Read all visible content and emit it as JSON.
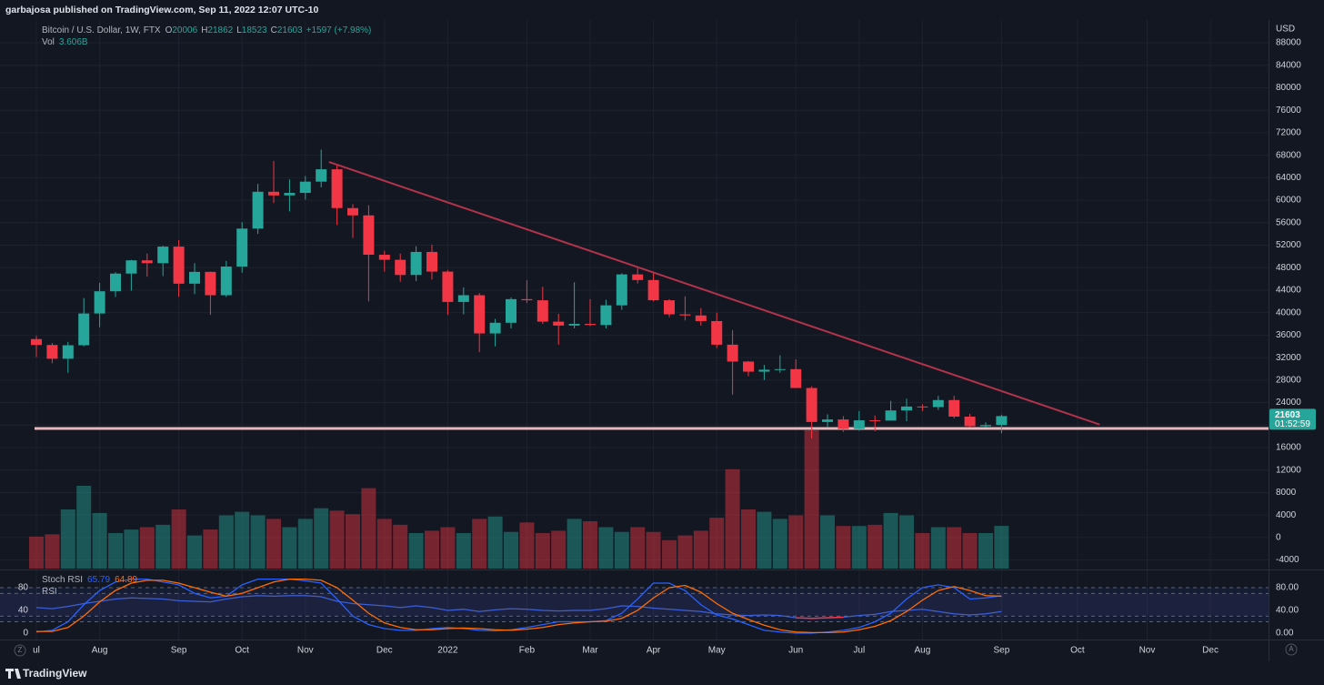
{
  "chart_data": {
    "type": "candlestick",
    "header": "garbajosa published on TradingView.com, Sep 11, 2022 12:07 UTC-10",
    "title": "Bitcoin / U.S. Dollar, 1W, FTX",
    "ohlc_labels": [
      "O",
      "H",
      "L",
      "C"
    ],
    "change_label": "+1597 (+7.98%)",
    "currency": "USD",
    "countdown": "01:52:59",
    "up_color": "#26a69a",
    "down_color": "#f23645",
    "open": [
      35300,
      34250,
      31800,
      34200,
      39850,
      43800,
      46950,
      49300,
      48800,
      51750,
      45150,
      47250,
      43100,
      48200,
      54950,
      61500,
      60850,
      61300,
      63300,
      65500,
      58600,
      57300,
      50300,
      49400,
      46700,
      50800,
      47300,
      41900,
      43100,
      36300,
      38200,
      42400,
      42200,
      38400,
      37700,
      38000,
      37800,
      41300,
      46800,
      45800,
      42200,
      39700,
      39500,
      38500,
      34300,
      31300,
      29500,
      29850,
      29950,
      26600,
      20550,
      21000,
      19300,
      20850,
      20800,
      22600,
      23300,
      23200,
      24450,
      21500,
      19800,
      20006
    ],
    "high": [
      35900,
      34600,
      34800,
      42600,
      45300,
      47200,
      49400,
      50500,
      51900,
      52900,
      48800,
      47300,
      49200,
      56100,
      62900,
      67000,
      63700,
      64300,
      69000,
      66300,
      59300,
      59100,
      51000,
      50500,
      51800,
      52100,
      47600,
      44500,
      43500,
      38900,
      42700,
      45800,
      44600,
      39800,
      45400,
      42400,
      42300,
      47000,
      48200,
      47200,
      42400,
      42900,
      40800,
      40000,
      36900,
      31400,
      30700,
      32400,
      31700,
      26900,
      21900,
      21600,
      22500,
      21700,
      24300,
      24700,
      23700,
      25200,
      25200,
      22000,
      20500,
      21862
    ],
    "low": [
      32100,
      31000,
      29300,
      34000,
      37400,
      42800,
      43900,
      46400,
      46500,
      42800,
      43300,
      39600,
      42800,
      47100,
      54000,
      59500,
      58000,
      60100,
      62300,
      55600,
      53300,
      42000,
      47300,
      45500,
      45600,
      45900,
      39600,
      39700,
      33000,
      34000,
      37200,
      41700,
      38000,
      34300,
      37200,
      37600,
      37200,
      40500,
      45200,
      42000,
      39200,
      38600,
      37700,
      33700,
      25400,
      28700,
      28000,
      29300,
      26600,
      17600,
      19700,
      18800,
      19000,
      18900,
      20800,
      20700,
      22500,
      22700,
      21200,
      19600,
      19600,
      18523
    ],
    "close": [
      34250,
      31800,
      34200,
      39850,
      43800,
      46950,
      49300,
      48800,
      51750,
      45150,
      47250,
      43100,
      48200,
      54950,
      61500,
      60850,
      61300,
      63300,
      65500,
      58600,
      57300,
      50300,
      49400,
      46700,
      50800,
      47300,
      41900,
      43100,
      36300,
      38200,
      42400,
      42200,
      38400,
      37700,
      38000,
      37800,
      41300,
      46800,
      45800,
      42200,
      39700,
      39500,
      38500,
      34300,
      31300,
      29500,
      29850,
      29950,
      26600,
      20550,
      21000,
      19300,
      20850,
      20800,
      22600,
      23300,
      23200,
      24450,
      21500,
      19800,
      20006,
      21603
    ],
    "ylim": [
      -5520,
      92050
    ],
    "yticks": [
      88000,
      84000,
      80000,
      76000,
      72000,
      68000,
      64000,
      60000,
      56000,
      52000,
      48000,
      44000,
      40000,
      36000,
      32000,
      28000,
      24000,
      20000,
      16000,
      12000,
      8000,
      4000,
      0,
      -4000
    ],
    "xticks": [
      {
        "value": 0,
        "label": "ul"
      },
      {
        "value": 4,
        "label": "Aug"
      },
      {
        "value": 9,
        "label": "Sep"
      },
      {
        "value": 13,
        "label": "Oct"
      },
      {
        "value": 17,
        "label": "Nov"
      },
      {
        "value": 22,
        "label": "Dec"
      },
      {
        "value": 26,
        "label": "2022"
      },
      {
        "value": 31,
        "label": "Feb"
      },
      {
        "value": 35,
        "label": "Mar"
      },
      {
        "value": 39,
        "label": "Apr"
      },
      {
        "value": 43,
        "label": "May"
      },
      {
        "value": 48,
        "label": "Jun"
      },
      {
        "value": 52,
        "label": "Jul"
      },
      {
        "value": 56,
        "label": "Aug"
      },
      {
        "value": 61,
        "label": "Sep"
      },
      {
        "value": 65.8,
        "label": "Oct"
      },
      {
        "value": 70.2,
        "label": "Nov"
      },
      {
        "value": 74.2,
        "label": "Dec"
      }
    ],
    "grid": true,
    "volume": {
      "label": "Vol",
      "value_label": "3.606B",
      "ylim": [
        0,
        13
      ],
      "values": [
        2.7,
        2.9,
        5.0,
        7.0,
        4.7,
        3.0,
        3.3,
        3.5,
        3.7,
        5.0,
        2.8,
        3.3,
        4.5,
        4.8,
        4.5,
        4.2,
        3.5,
        4.2,
        5.1,
        4.9,
        4.6,
        6.8,
        4.2,
        3.7,
        3.0,
        3.2,
        3.5,
        3.0,
        4.2,
        4.4,
        3.1,
        3.9,
        3.0,
        3.2,
        4.2,
        4.0,
        3.5,
        3.1,
        3.5,
        3.1,
        2.4,
        2.8,
        3.2,
        4.3,
        8.4,
        5.0,
        4.8,
        4.2,
        4.5,
        11.7,
        4.5,
        3.6,
        3.6,
        3.7,
        4.7,
        4.5,
        3.0,
        3.5,
        3.5,
        3.0,
        3.0,
        3.606
      ]
    },
    "trendline": {
      "x": [
        18.5,
        67.2
      ],
      "y": [
        66800,
        20100
      ],
      "color": "#b2334a"
    },
    "support": {
      "value": 19400,
      "color": "#e6b8bc"
    },
    "stoch_rsi": {
      "title": "Stoch RSI",
      "rsi_title": "RSI",
      "ylim": [
        -9.6,
        105.6
      ],
      "yticks": [
        80,
        40,
        0
      ],
      "yticks_right": [
        {
          "value": 80,
          "label": "80.00"
        },
        {
          "value": 40,
          "label": "40.00"
        },
        {
          "value": 0,
          "label": "0.00"
        }
      ],
      "stoch_bands": [
        20,
        80
      ],
      "rsi_bands": [
        30,
        70
      ],
      "oversold_color": "#f23645",
      "k": {
        "color": "#2962ff",
        "values": [
          2,
          5,
          20,
          50,
          75,
          90,
          95,
          95,
          90,
          85,
          70,
          62,
          65,
          85,
          95,
          95,
          95,
          92,
          88,
          60,
          30,
          15,
          8,
          5,
          5,
          8,
          10,
          8,
          5,
          4,
          6,
          10,
          15,
          20,
          20,
          20,
          22,
          35,
          60,
          88,
          88,
          75,
          50,
          32,
          25,
          15,
          5,
          2,
          0,
          0,
          2,
          5,
          10,
          20,
          35,
          60,
          80,
          85,
          80,
          60,
          62,
          65.79
        ]
      },
      "d": {
        "color": "#ff6d00",
        "values": [
          3,
          3,
          10,
          30,
          55,
          75,
          88,
          93,
          93,
          88,
          80,
          72,
          65,
          70,
          80,
          90,
          95,
          95,
          93,
          80,
          58,
          35,
          18,
          10,
          6,
          6,
          8,
          9,
          8,
          6,
          5,
          7,
          10,
          15,
          18,
          20,
          21,
          26,
          40,
          62,
          80,
          84,
          72,
          52,
          35,
          24,
          14,
          6,
          2,
          1,
          1,
          2,
          6,
          12,
          22,
          38,
          58,
          75,
          82,
          75,
          66,
          64.89
        ]
      },
      "rsi": {
        "color": "#3d5fd6",
        "values": [
          45,
          43,
          47,
          52,
          56,
          60,
          62,
          61,
          60,
          57,
          56,
          55,
          60,
          64,
          66,
          65,
          66,
          66,
          64,
          56,
          52,
          50,
          48,
          45,
          48,
          45,
          40,
          42,
          38,
          41,
          43,
          42,
          40,
          39,
          40,
          40,
          43,
          48,
          47,
          44,
          42,
          40,
          38,
          34,
          32,
          31,
          32,
          31,
          27,
          26,
          27,
          28,
          31,
          33,
          38,
          40,
          42,
          38,
          34,
          32,
          34,
          38
        ]
      }
    },
    "scale_buttons": [
      "Z",
      "A"
    ],
    "branding": "TradingView"
  }
}
